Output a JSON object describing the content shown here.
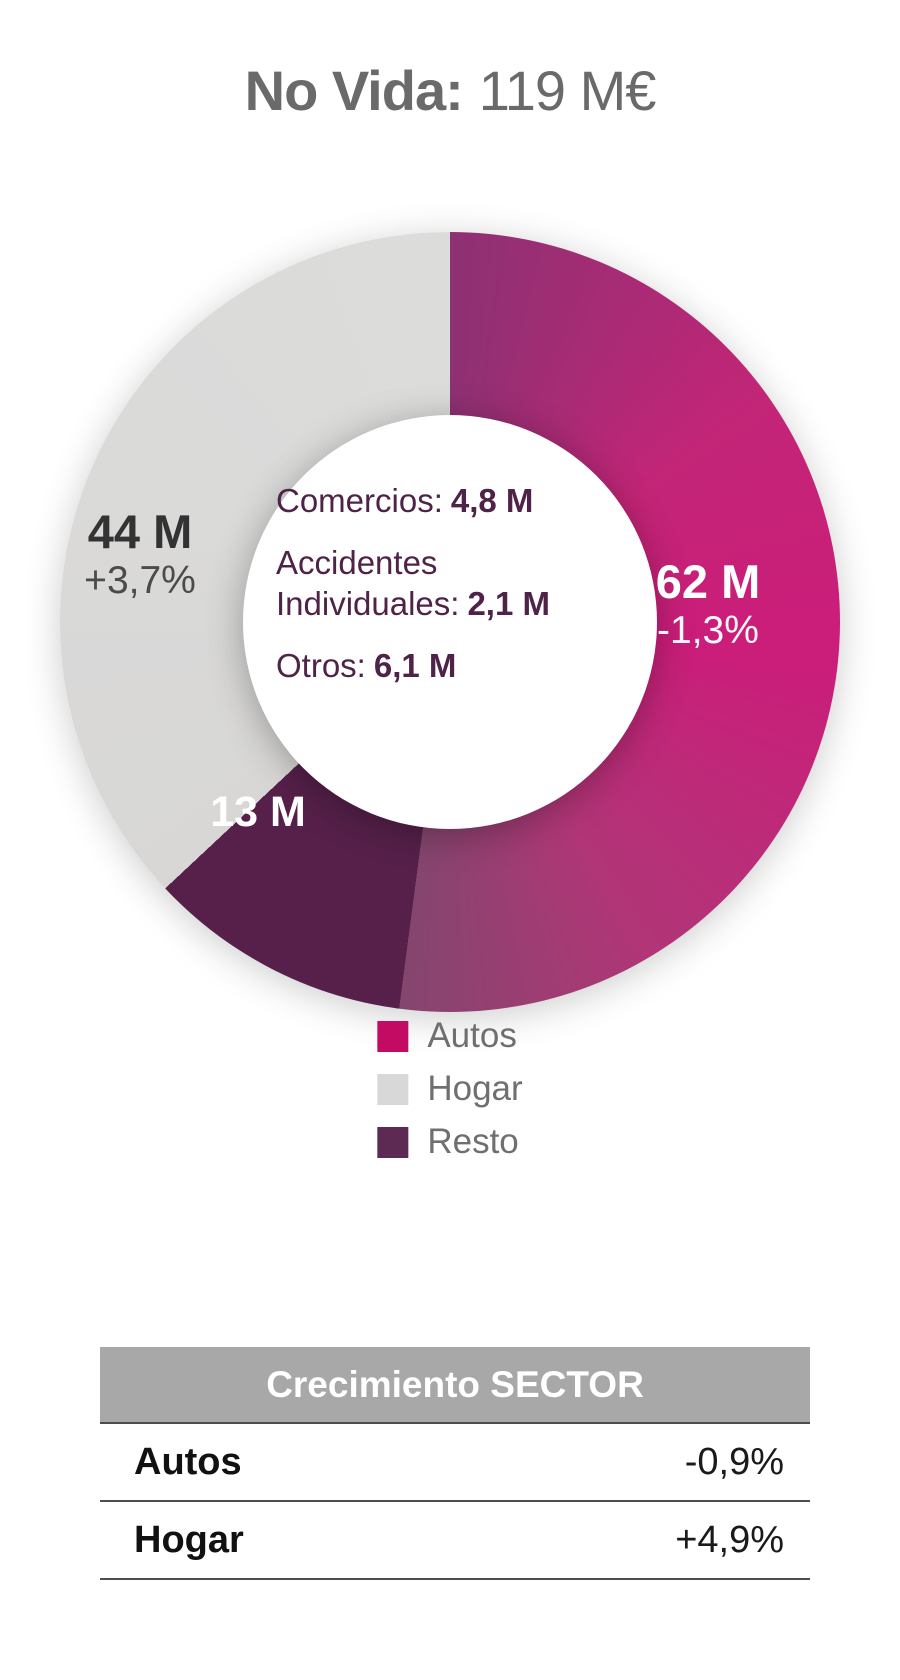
{
  "header": {
    "title_bold": "No Vida:",
    "title_value": "119 M€"
  },
  "colors": {
    "autos_slice": "#c6246f",
    "autos_legend": "#c30b64",
    "hogar": "#d9d9d9",
    "resto": "#56204a",
    "center_text": "#4f2348",
    "table_header_bg": "#a8a8a8",
    "title_text": "#6a6a6a"
  },
  "chart_data": [
    {
      "type": "pie",
      "donut": true,
      "title": "No Vida: 119 M€",
      "total": 119,
      "unit": "M€",
      "start_angle_deg": 0,
      "direction": "clockwise",
      "segments": [
        {
          "label": "Autos",
          "value": 62,
          "value_label": "62 M",
          "growth_label": "-1,3%",
          "color": "#c6246f"
        },
        {
          "label": "Resto",
          "value": 13,
          "value_label": "13 M",
          "growth_label": "",
          "color": "#56204a"
        },
        {
          "label": "Hogar",
          "value": 44,
          "value_label": "44 M",
          "growth_label": "+3,7%",
          "color": "#d9d9d9"
        }
      ],
      "center_annotations": [
        {
          "label": "Comercios:",
          "value": "4,8 M"
        },
        {
          "label": "Accidentes Individuales:",
          "value": "2,1 M"
        },
        {
          "label": "Otros:",
          "value": "6,1 M"
        }
      ],
      "legend_position": "bottom"
    },
    {
      "type": "table",
      "header": "Crecimiento SECTOR",
      "rows": [
        {
          "label": "Autos",
          "value": "-0,9%"
        },
        {
          "label": "Hogar",
          "value": "+4,9%"
        }
      ]
    }
  ],
  "legend": [
    {
      "label": "Autos",
      "color": "#c30b64"
    },
    {
      "label": "Hogar",
      "color": "#d8d8d8"
    },
    {
      "label": "Resto",
      "color": "#5c2a52"
    }
  ]
}
